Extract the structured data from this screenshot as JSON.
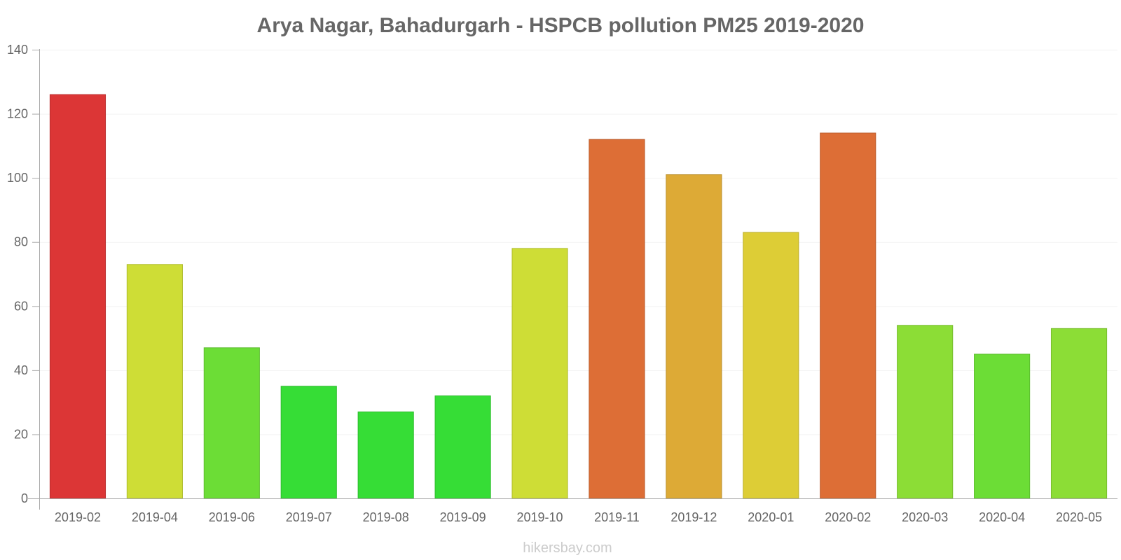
{
  "chart_data": {
    "type": "bar",
    "title": "Arya Nagar, Bahadurgarh - HSPCB pollution PM25 2019-2020",
    "xlabel": "",
    "ylabel": "",
    "ylim": [
      0,
      140
    ],
    "yticks": [
      "0",
      "20",
      "40",
      "60",
      "80",
      "100",
      "120",
      "140"
    ],
    "categories": [
      "2019-02",
      "2019-04",
      "2019-06",
      "2019-07",
      "2019-08",
      "2019-09",
      "2019-10",
      "2019-11",
      "2019-12",
      "2020-01",
      "2020-02",
      "2020-03",
      "2020-04",
      "2020-05"
    ],
    "values": [
      126,
      73,
      47,
      35,
      27,
      32,
      78,
      112,
      101,
      83,
      114,
      54,
      45,
      53
    ],
    "colors": [
      "#dc3636",
      "#cedd36",
      "#6cdd36",
      "#36dd36",
      "#36dd36",
      "#36dd36",
      "#cedd36",
      "#dd6e36",
      "#ddaa36",
      "#ddcd36",
      "#dd6e36",
      "#8cdd36",
      "#6cdd36",
      "#8cdd36"
    ],
    "grid": true,
    "legend": "none"
  },
  "watermark": "hikersbay.com"
}
